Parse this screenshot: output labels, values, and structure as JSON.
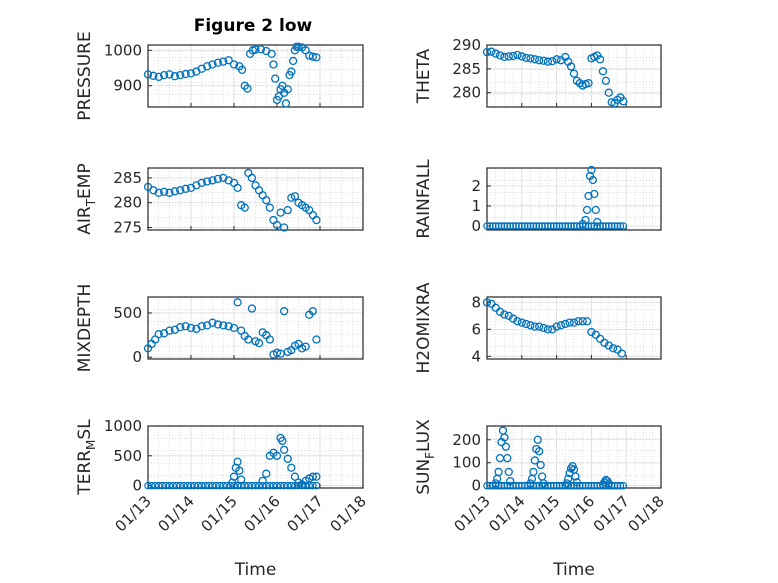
{
  "figure": {
    "title": "Figure 2 low",
    "marker_color": "#0072bd",
    "axis_color": "#262626",
    "grid": true,
    "minor_grid": true
  },
  "chart_data": [
    {
      "type": "scatter",
      "ylabel": "PRESSURE",
      "title": "Figure 2 low",
      "xlim": [
        "01/13",
        "01/18"
      ],
      "ylim": [
        840,
        1015
      ],
      "yticks": [
        900,
        1000
      ],
      "xticks": [],
      "xlabel": "",
      "x": [
        "01/13 00:00",
        "01/13 03:00",
        "01/13 06:00",
        "01/13 09:00",
        "01/13 12:00",
        "01/13 15:00",
        "01/13 18:00",
        "01/13 21:00",
        "01/14 00:00",
        "01/14 03:00",
        "01/14 06:00",
        "01/14 09:00",
        "01/14 12:00",
        "01/14 15:00",
        "01/14 18:00",
        "01/14 21:00",
        "01/15 00:00",
        "01/15 03:00",
        "01/15 04:30",
        "01/15 06:00",
        "01/15 07:30",
        "01/15 09:00",
        "01/15 10:30",
        "01/15 12:00",
        "01/15 15:00",
        "01/15 18:00",
        "01/15 21:00",
        "01/15 22:00",
        "01/15 23:00",
        "01/16 00:00",
        "01/16 01:00",
        "01/16 02:00",
        "01/16 03:00",
        "01/16 04:00",
        "01/16 05:00",
        "01/16 06:00",
        "01/16 07:00",
        "01/16 08:00",
        "01/16 09:00",
        "01/16 10:00",
        "01/16 11:00",
        "01/16 12:00",
        "01/16 14:00",
        "01/16 16:00",
        "01/16 18:00",
        "01/16 20:00",
        "01/16 22:00"
      ],
      "y": [
        932,
        928,
        925,
        930,
        932,
        927,
        930,
        933,
        935,
        940,
        948,
        955,
        960,
        965,
        968,
        972,
        960,
        955,
        945,
        900,
        892,
        990,
        1000,
        1002,
        1003,
        998,
        990,
        960,
        920,
        860,
        870,
        890,
        900,
        880,
        850,
        890,
        930,
        940,
        970,
        1000,
        1010,
        1010,
        1008,
        1000,
        985,
        982,
        980
      ]
    },
    {
      "type": "scatter",
      "ylabel": "THETA",
      "xlim": [
        "01/13",
        "01/18"
      ],
      "ylim": [
        277,
        290
      ],
      "yticks": [
        280,
        285,
        290
      ],
      "xticks": [],
      "xlabel": "",
      "x": [
        "01/13 00:00",
        "01/13 03:00",
        "01/13 06:00",
        "01/13 09:00",
        "01/13 12:00",
        "01/13 15:00",
        "01/13 18:00",
        "01/13 21:00",
        "01/14 00:00",
        "01/14 03:00",
        "01/14 06:00",
        "01/14 09:00",
        "01/14 12:00",
        "01/14 15:00",
        "01/14 18:00",
        "01/14 21:00",
        "01/15 00:00",
        "01/15 03:00",
        "01/15 06:00",
        "01/15 08:00",
        "01/15 10:00",
        "01/15 12:00",
        "01/15 14:00",
        "01/15 16:00",
        "01/15 18:00",
        "01/15 20:00",
        "01/15 22:00",
        "01/16 00:00",
        "01/16 02:00",
        "01/16 04:00",
        "01/16 06:00",
        "01/16 08:00",
        "01/16 10:00",
        "01/16 12:00",
        "01/16 14:00",
        "01/16 16:00",
        "01/16 18:00",
        "01/16 20:00",
        "01/16 22:00"
      ],
      "y": [
        288.5,
        288.6,
        288.2,
        287.8,
        287.5,
        287.6,
        287.7,
        287.9,
        287.6,
        287.3,
        287.2,
        287.0,
        286.8,
        286.7,
        286.5,
        286.6,
        287.0,
        286.8,
        287.5,
        286.5,
        285.5,
        284.0,
        282.5,
        282.0,
        281.5,
        281.8,
        282.0,
        287.2,
        287.5,
        287.8,
        287.0,
        284.5,
        282.5,
        280.0,
        278.0,
        277.8,
        278.5,
        279.0,
        278.2
      ]
    },
    {
      "type": "scatter",
      "ylabel": "AIR_TEMP",
      "xlim": [
        "01/13",
        "01/18"
      ],
      "ylim": [
        274.5,
        287
      ],
      "yticks": [
        275,
        280,
        285
      ],
      "xticks": [],
      "xlabel": "",
      "x": [
        "01/13 00:00",
        "01/13 03:00",
        "01/13 06:00",
        "01/13 09:00",
        "01/13 12:00",
        "01/13 15:00",
        "01/13 18:00",
        "01/13 21:00",
        "01/14 00:00",
        "01/14 03:00",
        "01/14 06:00",
        "01/14 09:00",
        "01/14 12:00",
        "01/14 15:00",
        "01/14 18:00",
        "01/14 21:00",
        "01/15 00:00",
        "01/15 02:00",
        "01/15 04:00",
        "01/15 06:00",
        "01/15 08:00",
        "01/15 10:00",
        "01/15 12:00",
        "01/15 14:00",
        "01/15 16:00",
        "01/15 18:00",
        "01/15 20:00",
        "01/15 22:00",
        "01/16 00:00",
        "01/16 02:00",
        "01/16 04:00",
        "01/16 06:00",
        "01/16 08:00",
        "01/16 10:00",
        "01/16 12:00",
        "01/16 14:00",
        "01/16 16:00",
        "01/16 18:00",
        "01/16 20:00",
        "01/16 22:00"
      ],
      "y": [
        283.2,
        282.5,
        282.0,
        282.2,
        282.0,
        282.3,
        282.5,
        282.8,
        283.0,
        283.5,
        284.0,
        284.3,
        284.5,
        284.8,
        285.0,
        284.5,
        284.0,
        283.0,
        279.5,
        279.0,
        286.0,
        285.0,
        283.5,
        282.5,
        281.5,
        280.5,
        279.0,
        276.5,
        275.5,
        278.0,
        275.0,
        278.5,
        281.0,
        281.3,
        280.0,
        279.5,
        279.0,
        278.5,
        277.5,
        276.5
      ]
    },
    {
      "type": "scatter",
      "ylabel": "RAINFALL",
      "xlim": [
        "01/13",
        "01/18"
      ],
      "ylim": [
        -0.2,
        2.9
      ],
      "yticks": [
        0,
        1,
        2
      ],
      "xticks": [],
      "xlabel": "",
      "x": [
        "01/15 18:00",
        "01/15 20:00",
        "01/15 21:00",
        "01/15 22:00",
        "01/15 23:00",
        "01/16 00:00",
        "01/16 01:00",
        "01/16 02:00",
        "01/16 03:00",
        "01/16 04:00"
      ],
      "y": [
        0.1,
        0.3,
        0.8,
        1.5,
        2.5,
        2.8,
        2.3,
        1.6,
        0.8,
        0.2
      ],
      "baseline_zero_range": [
        "01/13 00:00",
        "01/16 22:00"
      ]
    },
    {
      "type": "scatter",
      "ylabel": "MIXDEPTH",
      "xlim": [
        "01/13",
        "01/18"
      ],
      "ylim": [
        -20,
        680
      ],
      "yticks": [
        0,
        500
      ],
      "xticks": [],
      "xlabel": "",
      "x": [
        "01/13 00:00",
        "01/13 02:00",
        "01/13 04:00",
        "01/13 06:00",
        "01/13 09:00",
        "01/13 12:00",
        "01/13 15:00",
        "01/13 18:00",
        "01/13 21:00",
        "01/14 00:00",
        "01/14 03:00",
        "01/14 06:00",
        "01/14 09:00",
        "01/14 12:00",
        "01/14 15:00",
        "01/14 18:00",
        "01/14 21:00",
        "01/15 00:00",
        "01/15 02:00",
        "01/15 04:00",
        "01/15 06:00",
        "01/15 08:00",
        "01/15 10:00",
        "01/15 12:00",
        "01/15 14:00",
        "01/15 16:00",
        "01/15 18:00",
        "01/15 20:00",
        "01/15 22:00",
        "01/16 00:00",
        "01/16 02:00",
        "01/16 04:00",
        "01/16 06:00",
        "01/16 08:00",
        "01/16 10:00",
        "01/16 12:00",
        "01/16 14:00",
        "01/16 16:00",
        "01/16 18:00",
        "01/16 20:00",
        "01/16 22:00"
      ],
      "y": [
        100,
        150,
        200,
        260,
        270,
        300,
        310,
        340,
        350,
        330,
        320,
        350,
        360,
        390,
        370,
        360,
        350,
        330,
        620,
        300,
        240,
        200,
        550,
        180,
        160,
        280,
        250,
        200,
        30,
        50,
        40,
        520,
        60,
        80,
        130,
        150,
        100,
        120,
        480,
        520,
        200
      ]
    },
    {
      "type": "scatter",
      "ylabel": "H2OMIXRA",
      "xlim": [
        "01/13",
        "01/18"
      ],
      "ylim": [
        3.8,
        8.4
      ],
      "yticks": [
        4,
        6,
        8
      ],
      "xticks": [],
      "xlabel": "",
      "x": [
        "01/13 00:00",
        "01/13 03:00",
        "01/13 06:00",
        "01/13 09:00",
        "01/13 12:00",
        "01/13 15:00",
        "01/13 18:00",
        "01/13 21:00",
        "01/14 00:00",
        "01/14 03:00",
        "01/14 06:00",
        "01/14 09:00",
        "01/14 12:00",
        "01/14 15:00",
        "01/14 18:00",
        "01/14 21:00",
        "01/15 00:00",
        "01/15 03:00",
        "01/15 06:00",
        "01/15 09:00",
        "01/15 12:00",
        "01/15 15:00",
        "01/15 18:00",
        "01/15 21:00",
        "01/16 00:00",
        "01/16 03:00",
        "01/16 06:00",
        "01/16 09:00",
        "01/16 12:00",
        "01/16 15:00",
        "01/16 18:00",
        "01/16 21:00"
      ],
      "y": [
        8.0,
        7.9,
        7.6,
        7.3,
        7.1,
        7.0,
        6.8,
        6.6,
        6.5,
        6.4,
        6.3,
        6.2,
        6.2,
        6.1,
        6.0,
        6.0,
        6.2,
        6.3,
        6.4,
        6.5,
        6.5,
        6.6,
        6.6,
        6.6,
        5.8,
        5.6,
        5.3,
        5.0,
        4.8,
        4.6,
        4.5,
        4.2
      ]
    },
    {
      "type": "scatter",
      "ylabel": "TERR_MSL",
      "xlim": [
        "01/13",
        "01/18"
      ],
      "ylim": [
        -40,
        1000
      ],
      "yticks": [
        0,
        500,
        1000
      ],
      "xticks": [
        "01/13",
        "01/14",
        "01/15",
        "01/16",
        "01/17",
        "01/18"
      ],
      "xlabel": "Time",
      "x": [
        "01/14 23:00",
        "01/15 00:00",
        "01/15 01:00",
        "01/15 02:00",
        "01/15 03:00",
        "01/15 04:00",
        "01/15 16:00",
        "01/15 18:00",
        "01/15 20:00",
        "01/15 22:00",
        "01/16 00:00",
        "01/16 02:00",
        "01/16 03:00",
        "01/16 04:00",
        "01/16 06:00",
        "01/16 08:00",
        "01/16 10:00",
        "01/16 12:00",
        "01/16 14:00",
        "01/16 16:00",
        "01/16 18:00",
        "01/16 20:00",
        "01/16 22:00"
      ],
      "y": [
        50,
        150,
        300,
        400,
        250,
        100,
        80,
        200,
        500,
        550,
        500,
        800,
        750,
        600,
        450,
        300,
        150,
        50,
        20,
        80,
        120,
        150,
        150
      ],
      "baseline_zero_range": [
        "01/13 00:00",
        "01/16 22:00"
      ]
    },
    {
      "type": "scatter",
      "ylabel": "SUN_FLUX",
      "xlim": [
        "01/13",
        "01/18"
      ],
      "ylim": [
        -10,
        260
      ],
      "yticks": [
        0,
        100,
        200
      ],
      "xticks": [
        "01/13",
        "01/14",
        "01/15",
        "01/16",
        "01/17",
        "01/18"
      ],
      "xlabel": "Time",
      "x": [
        "01/13 06:00",
        "01/13 07:00",
        "01/13 08:00",
        "01/13 09:00",
        "01/13 10:00",
        "01/13 11:00",
        "01/13 12:00",
        "01/13 13:00",
        "01/13 14:00",
        "01/13 15:00",
        "01/13 16:00",
        "01/14 06:00",
        "01/14 07:00",
        "01/14 08:00",
        "01/14 09:00",
        "01/14 10:00",
        "01/14 11:00",
        "01/14 12:00",
        "01/14 13:00",
        "01/14 14:00",
        "01/14 15:00",
        "01/15 07:00",
        "01/15 08:00",
        "01/15 09:00",
        "01/15 10:00",
        "01/15 11:00",
        "01/15 12:00",
        "01/15 13:00",
        "01/15 14:00",
        "01/16 08:00",
        "01/16 09:00",
        "01/16 10:00",
        "01/16 11:00",
        "01/16 12:00"
      ],
      "y": [
        10,
        30,
        60,
        120,
        190,
        240,
        210,
        170,
        120,
        60,
        20,
        10,
        30,
        60,
        110,
        160,
        200,
        150,
        90,
        40,
        10,
        10,
        30,
        55,
        75,
        85,
        70,
        40,
        15,
        5,
        15,
        25,
        20,
        10
      ],
      "baseline_zero_range": [
        "01/13 00:00",
        "01/16 22:00"
      ]
    }
  ]
}
